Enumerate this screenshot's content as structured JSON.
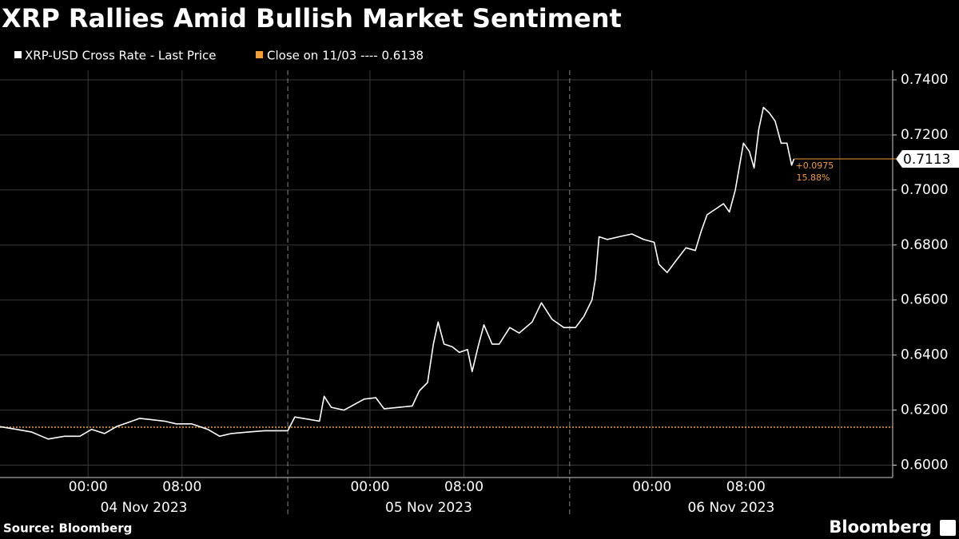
{
  "chart_data": {
    "type": "line",
    "title": "XRP Rallies Amid Bullish Market Sentiment",
    "source": "Source: Bloomberg",
    "brand": "Bloomberg",
    "x": [
      -7.5,
      -6.1,
      -4.8,
      -3.4,
      -2.0,
      -0.7,
      0.3,
      1.4,
      2.4,
      3.4,
      4.4,
      5.4,
      6.5,
      7.5,
      8.8,
      10.2,
      11.2,
      12.2,
      13.6,
      15.0,
      17.0,
      17.6,
      19.7,
      20.1,
      20.7,
      21.8,
      23.5,
      24.5,
      25.2,
      26.5,
      27.6,
      28.2,
      28.9,
      29.4,
      29.8,
      30.3,
      31.0,
      31.6,
      32.3,
      32.7,
      33.2,
      33.7,
      34.4,
      35.0,
      35.9,
      36.7,
      37.8,
      38.6,
      39.5,
      40.5,
      41.5,
      42.2,
      42.9,
      43.2,
      43.5,
      44.2,
      45.2,
      46.3,
      47.3,
      48.2,
      48.6,
      49.3,
      50.0,
      50.9,
      51.7,
      52.2,
      52.7,
      53.4,
      54.1,
      54.6,
      55.1,
      55.8,
      56.3,
      56.7,
      57.1,
      57.5,
      58.0,
      58.5,
      59.0,
      59.5,
      59.9,
      60.1
    ],
    "series": [
      {
        "name": "XRP-USD Cross Rate - Last Price",
        "color": "#ffffff",
        "values": [
          0.614,
          0.613,
          0.612,
          0.6095,
          0.6105,
          0.6105,
          0.613,
          0.6115,
          0.614,
          0.6155,
          0.617,
          0.6165,
          0.616,
          0.615,
          0.615,
          0.613,
          0.6105,
          0.6115,
          0.612,
          0.6125,
          0.6125,
          0.6175,
          0.616,
          0.625,
          0.621,
          0.62,
          0.624,
          0.6245,
          0.6205,
          0.621,
          0.6215,
          0.627,
          0.63,
          0.644,
          0.652,
          0.644,
          0.643,
          0.641,
          0.642,
          0.634,
          0.643,
          0.651,
          0.644,
          0.644,
          0.65,
          0.648,
          0.652,
          0.659,
          0.653,
          0.65,
          0.65,
          0.654,
          0.66,
          0.668,
          0.683,
          0.682,
          0.683,
          0.684,
          0.682,
          0.681,
          0.673,
          0.67,
          0.674,
          0.679,
          0.678,
          0.685,
          0.691,
          0.693,
          0.695,
          0.692,
          0.7,
          0.717,
          0.714,
          0.708,
          0.722,
          0.73,
          0.728,
          0.725,
          0.717,
          0.717,
          0.709,
          0.7113
        ]
      }
    ],
    "reference": {
      "label": "Close on 11/03 ---- 0.6138",
      "value": 0.6138,
      "color": "#f39c34"
    },
    "last_price": 0.7113,
    "change": {
      "value": 0.0975,
      "label": "+0.0975"
    },
    "change_pct": {
      "value": 15.88,
      "label": "15.88%"
    },
    "xlim": [
      -7.5,
      68.5
    ],
    "xticks": [
      {
        "value": 0,
        "label": "00:00"
      },
      {
        "value": 8,
        "label": "08:00"
      },
      {
        "value": 16,
        "label": null
      },
      {
        "value": 24,
        "label": "00:00"
      },
      {
        "value": 32,
        "label": "08:00"
      },
      {
        "value": 40,
        "label": null
      },
      {
        "value": 48,
        "label": "00:00"
      },
      {
        "value": 56,
        "label": "08:00"
      },
      {
        "value": 64,
        "label": null
      }
    ],
    "day_separators": [
      17,
      41
    ],
    "date_labels": [
      "04 Nov 2023",
      "05 Nov 2023",
      "06 Nov 2023"
    ],
    "ylim": [
      0.5955,
      0.7435
    ],
    "yticks": [
      {
        "value": 0.6,
        "label": "0.6000"
      },
      {
        "value": 0.62,
        "label": "0.6200"
      },
      {
        "value": 0.64,
        "label": "0.6400"
      },
      {
        "value": 0.66,
        "label": "0.6600"
      },
      {
        "value": 0.68,
        "label": "0.6800"
      },
      {
        "value": 0.7,
        "label": "0.7000"
      },
      {
        "value": 0.72,
        "label": "0.7200"
      },
      {
        "value": 0.74,
        "label": "0.7400"
      }
    ],
    "grid": true
  }
}
